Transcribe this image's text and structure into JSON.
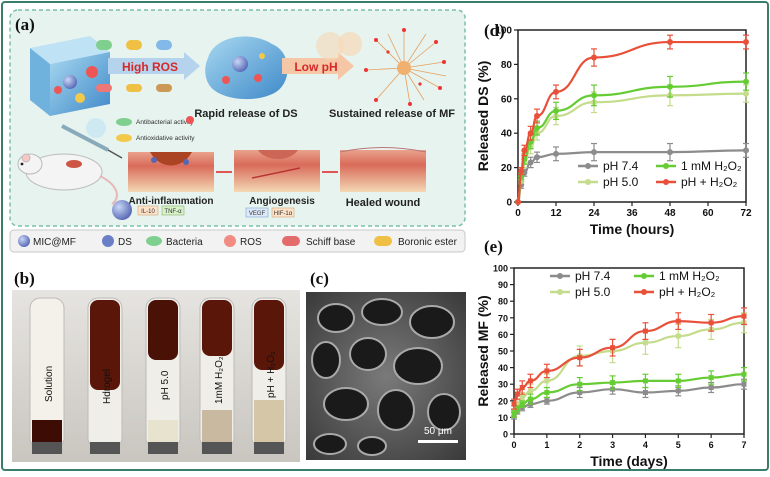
{
  "panels": {
    "a": {
      "label": "(a)",
      "high_ros": "High ROS",
      "low_ph": "Low pH",
      "rapid_release": "Rapid release of DS",
      "sustained_release": "Sustained release of MF",
      "antibacterial": "Antibacterial activity",
      "antioxidative": "Antioxidative activity",
      "anti_inflammation": "Anti-inflammation",
      "il10": "IL-10",
      "tnfa": "TNF-α",
      "angiogenesis": "Angiogenesis",
      "vegf": "VEGF",
      "hif": "HIF-1α",
      "healed": "Healed wound",
      "legend": [
        "MIC@MF",
        "DS",
        "Bacteria",
        "ROS",
        "Schiff base",
        "Boronic ester"
      ]
    },
    "b": {
      "label": "(b)",
      "tubes": [
        "Solution",
        "Hdrogel",
        "pH 5.0",
        "1mM H₂O₂",
        "pH + H₂O₂"
      ]
    },
    "c": {
      "label": "(c)",
      "scale_bar": "50 μm"
    },
    "d": {
      "label": "(d)"
    },
    "e": {
      "label": "(e)"
    }
  },
  "colors": {
    "ph74": "#8c8c8c",
    "mm_h2o2": "#66cc33",
    "ph50": "#c4dc8c",
    "ph_h2o2": "#e8503a",
    "frame_border": "#3a7d6a",
    "panel_a_bg": "#e6f3ee"
  },
  "chart_data": [
    {
      "type": "line",
      "panel": "d",
      "xlabel": "Time (hours)",
      "ylabel": "Released DS (%)",
      "xlim": [
        0,
        72
      ],
      "ylim": [
        0,
        100
      ],
      "xticks": [
        "0",
        "12",
        "24",
        "36",
        "48",
        "60",
        "72"
      ],
      "yticks": [
        "0",
        "20",
        "40",
        "60",
        "80",
        "100"
      ],
      "legend_position": "bottom-right",
      "legend_columns": 2,
      "series": [
        {
          "name": "pH 7.4",
          "color_key": "ph74",
          "x": [
            0,
            1,
            2,
            4,
            6,
            12,
            24,
            48,
            72
          ],
          "y": [
            0,
            10,
            17,
            23,
            26,
            28,
            29,
            29,
            30
          ],
          "err": [
            0,
            2,
            2,
            3,
            3,
            4,
            5,
            5,
            4
          ]
        },
        {
          "name": "pH 5.0",
          "color_key": "ph50",
          "x": [
            0,
            1,
            2,
            4,
            6,
            12,
            24,
            48,
            72
          ],
          "y": [
            0,
            13,
            23,
            32,
            40,
            50,
            58,
            62,
            63
          ],
          "err": [
            0,
            2,
            3,
            4,
            4,
            5,
            6,
            6,
            5
          ]
        },
        {
          "name": "1 mM H₂O₂",
          "color_key": "mm_h2o2",
          "x": [
            0,
            1,
            2,
            4,
            6,
            12,
            24,
            48,
            72
          ],
          "y": [
            0,
            15,
            25,
            35,
            43,
            53,
            62,
            67,
            70
          ],
          "err": [
            0,
            2,
            3,
            4,
            4,
            5,
            6,
            6,
            5
          ]
        },
        {
          "name": "pH + H₂O₂",
          "color_key": "ph_h2o2",
          "x": [
            0,
            1,
            2,
            4,
            6,
            12,
            24,
            48,
            72
          ],
          "y": [
            0,
            18,
            30,
            40,
            50,
            64,
            84,
            93,
            93
          ],
          "err": [
            0,
            2,
            3,
            4,
            4,
            4,
            5,
            4,
            4
          ]
        }
      ]
    },
    {
      "type": "line",
      "panel": "e",
      "xlabel": "Time (days)",
      "ylabel": "Released MF (%)",
      "xlim": [
        0,
        7
      ],
      "ylim": [
        0,
        100
      ],
      "xticks": [
        "0",
        "1",
        "2",
        "3",
        "4",
        "5",
        "6",
        "7"
      ],
      "yticks": [
        "0",
        "10",
        "20",
        "30",
        "40",
        "50",
        "60",
        "70",
        "80",
        "90",
        "100"
      ],
      "legend_position": "top-left",
      "legend_columns": 2,
      "series": [
        {
          "name": "pH 7.4",
          "color_key": "ph74",
          "x": [
            0,
            0.1,
            0.25,
            0.5,
            1,
            2,
            3,
            4,
            5,
            6,
            7
          ],
          "y": [
            11,
            14,
            16,
            18,
            20,
            25,
            27,
            25,
            26,
            28,
            30
          ],
          "err": [
            2,
            2,
            2,
            2,
            2,
            3,
            3,
            3,
            3,
            3,
            3
          ]
        },
        {
          "name": "pH 5.0",
          "color_key": "ph50",
          "x": [
            0,
            0.1,
            0.25,
            0.5,
            1,
            2,
            3,
            4,
            5,
            6,
            7
          ],
          "y": [
            14,
            18,
            22,
            26,
            32,
            47,
            50,
            55,
            59,
            63,
            67
          ],
          "err": [
            3,
            3,
            3,
            4,
            4,
            6,
            7,
            7,
            7,
            6,
            6
          ]
        },
        {
          "name": "1 mM H₂O₂",
          "color_key": "mm_h2o2",
          "x": [
            0,
            0.1,
            0.25,
            0.5,
            1,
            2,
            3,
            4,
            5,
            6,
            7
          ],
          "y": [
            12,
            15,
            18,
            21,
            25,
            30,
            31,
            32,
            32,
            34,
            36
          ],
          "err": [
            2,
            2,
            2,
            3,
            3,
            4,
            4,
            4,
            4,
            4,
            4
          ]
        },
        {
          "name": "pH + H₂O₂",
          "color_key": "ph_h2o2",
          "x": [
            0,
            0.1,
            0.25,
            0.5,
            1,
            2,
            3,
            4,
            5,
            6,
            7
          ],
          "y": [
            18,
            24,
            28,
            32,
            38,
            46,
            52,
            62,
            68,
            67,
            71
          ],
          "err": [
            3,
            3,
            4,
            4,
            4,
            5,
            5,
            5,
            5,
            5,
            5
          ]
        }
      ]
    }
  ]
}
